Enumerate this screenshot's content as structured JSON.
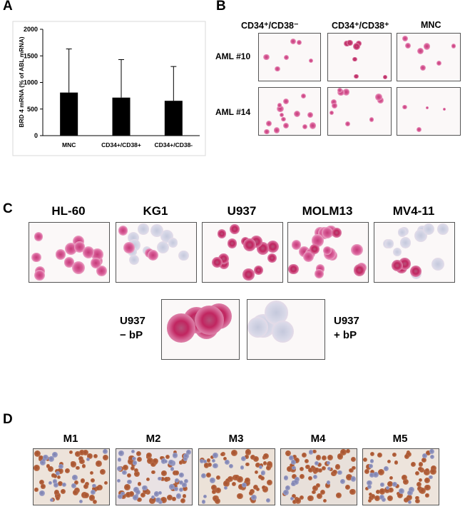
{
  "panels": {
    "a": "A",
    "b": "B",
    "c": "C",
    "d": "D"
  },
  "chart_data": {
    "type": "bar",
    "categories": [
      "MNC",
      "CD34+/CD38+",
      "CD34+/CD38-"
    ],
    "values": [
      810,
      715,
      655
    ],
    "error_upper": [
      1630,
      1430,
      1300
    ],
    "ylabel": "BRD 4 mRNA (% of ABL mRNA)",
    "xlabel": "",
    "ylim": [
      0,
      2000
    ],
    "yticks": [
      0,
      500,
      1000,
      1500,
      2000
    ],
    "grid": false,
    "colors": {
      "bar": "#000000"
    }
  },
  "panel_b": {
    "columns": [
      "CD34⁺/CD38⁻",
      "CD34⁺/CD38⁺",
      "MNC"
    ],
    "rows": [
      "AML #10",
      "AML #14"
    ]
  },
  "panel_c": {
    "lines": [
      "HL-60",
      "KG1",
      "U937",
      "MOLM13",
      "MV4-11"
    ],
    "neg_label": {
      "line1": "U937",
      "line2": "− bP"
    },
    "pos_label": {
      "line1": "U937",
      "line2": "+ bP"
    }
  },
  "panel_d": {
    "labels": [
      "M1",
      "M2",
      "M3",
      "M4",
      "M5"
    ]
  }
}
